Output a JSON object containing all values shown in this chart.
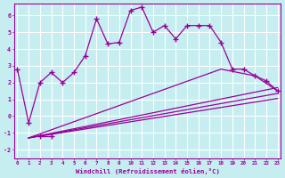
{
  "xlabel": "Windchill (Refroidissement éolien,°C)",
  "bg_color": "#c6eef0",
  "line_color": "#990099",
  "grid_color": "#ffffff",
  "xlim": [
    -0.3,
    23.3
  ],
  "ylim": [
    -2.5,
    6.7
  ],
  "yticks": [
    -2,
    -1,
    0,
    1,
    2,
    3,
    4,
    5,
    6
  ],
  "xticks": [
    0,
    1,
    2,
    3,
    4,
    5,
    6,
    7,
    8,
    9,
    10,
    11,
    12,
    13,
    14,
    15,
    16,
    17,
    18,
    19,
    20,
    21,
    22,
    23
  ],
  "main_line_x": [
    0,
    1,
    2,
    3,
    4,
    5,
    6,
    7,
    8,
    9,
    10,
    11,
    12,
    13,
    14,
    15,
    16,
    17,
    18,
    19,
    20,
    21,
    22,
    23
  ],
  "main_line_y": [
    2.8,
    -0.4,
    2.0,
    2.6,
    2.0,
    2.6,
    3.6,
    5.8,
    4.3,
    4.4,
    6.3,
    6.5,
    5.0,
    5.4,
    4.6,
    5.4,
    5.4,
    5.4,
    4.4,
    2.8,
    2.8,
    2.4,
    2.1,
    1.5
  ],
  "fan_lines": [
    {
      "x": [
        1,
        18,
        21,
        23
      ],
      "y": [
        -1.3,
        2.8,
        2.4,
        1.5
      ]
    },
    {
      "x": [
        1,
        23
      ],
      "y": [
        -1.3,
        1.7
      ]
    },
    {
      "x": [
        1,
        23
      ],
      "y": [
        -1.3,
        1.35
      ]
    },
    {
      "x": [
        1,
        23
      ],
      "y": [
        -1.3,
        1.05
      ]
    }
  ],
  "bottom_points_x": [
    2,
    3
  ],
  "bottom_points_y": [
    -1.2,
    -1.2
  ]
}
